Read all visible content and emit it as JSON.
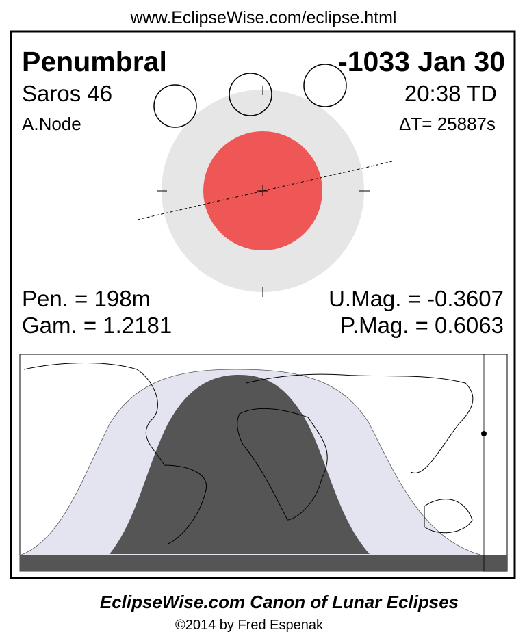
{
  "header": {
    "url": "www.EclipseWise.com/eclipse.html"
  },
  "eclipse": {
    "type": "Penumbral",
    "date": "-1033 Jan 30",
    "saros": "Saros  46",
    "time": "20:38 TD",
    "node": "A.Node",
    "delta_t": "ΔT=  25887s",
    "pen": "Pen. = 198m",
    "umag": "U.Mag. = -0.3607",
    "gam": "Gam. = 1.2181",
    "pmag": "P.Mag. = 0.6063"
  },
  "footer": {
    "title": "EclipseWise.com Canon of Lunar Eclipses",
    "copyright": "©2014 by Fred Espenak"
  }
}
